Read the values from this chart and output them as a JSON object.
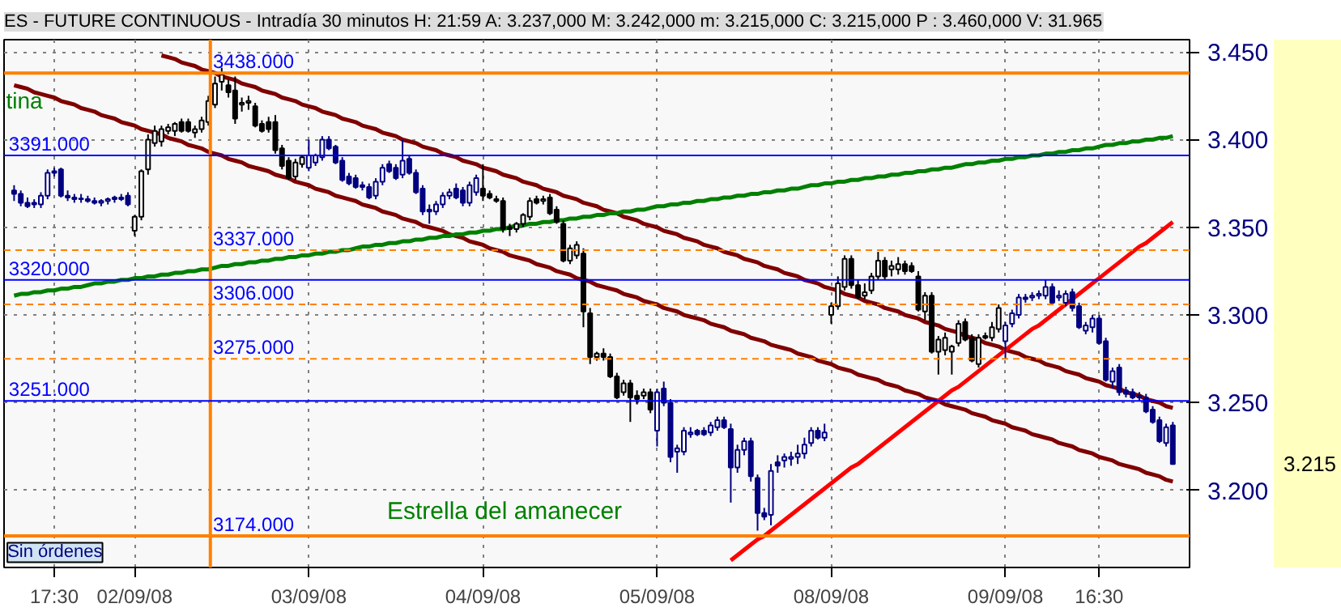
{
  "chart_data": {
    "type": "candlestick",
    "title": "ES - FUTURE CONTINUOUS - Intradía 30 minutos H: 21:59 A: 3.237,000 M: 3.242,000 m: 3.215,000 C: 3.215,000 P : 3.460,000 V: 31.965",
    "categories": [
      null,
      null,
      null,
      null,
      null,
      null,
      "17:30",
      null,
      null,
      null,
      null,
      null,
      null,
      null,
      null,
      null,
      null,
      null,
      "02/09/08",
      null,
      null,
      null,
      null,
      null,
      null,
      null,
      null,
      null,
      null,
      null,
      null,
      null,
      null,
      null,
      null,
      null,
      null,
      null,
      null,
      null,
      null,
      null,
      null,
      null,
      "03/09/08",
      null,
      null,
      null,
      null,
      null,
      null,
      null,
      null,
      null,
      null,
      null,
      null,
      null,
      null,
      null,
      null,
      null,
      null,
      null,
      null,
      null,
      null,
      null,
      null,
      null,
      "04/09/08",
      null,
      null,
      null,
      null,
      null,
      null,
      null,
      null,
      null,
      null,
      null,
      null,
      null,
      null,
      null,
      null,
      null,
      null,
      null,
      null,
      null,
      null,
      null,
      null,
      null,
      "05/09/08",
      null,
      null,
      null,
      null,
      null,
      null,
      null,
      null,
      null,
      null,
      null,
      null,
      null,
      null,
      null,
      null,
      null,
      null,
      null,
      null,
      null,
      null,
      null,
      null,
      null,
      "08/09/08",
      null,
      null,
      null,
      null,
      null,
      null,
      null,
      null,
      null,
      null,
      null,
      null,
      null,
      null,
      null,
      null,
      null,
      null,
      null,
      null,
      null,
      null,
      null,
      null,
      null,
      "09/09/08",
      null,
      null,
      null,
      null,
      null,
      null,
      null,
      null,
      null,
      null,
      null,
      null,
      null,
      "16:30",
      null,
      null,
      null,
      null,
      null,
      null,
      null,
      null,
      null,
      null,
      null
    ],
    "ohlc": [
      [
        3.371,
        3.374,
        3.365,
        3.369
      ],
      [
        3.369,
        3.371,
        3.362,
        3.364
      ],
      [
        3.364,
        3.367,
        3.361,
        3.362
      ],
      [
        3.363,
        3.366,
        3.361,
        3.364
      ],
      [
        3.363,
        3.37,
        3.361,
        3.368
      ],
      [
        3.368,
        3.383,
        3.366,
        3.381
      ],
      [
        3.381,
        3.384,
        3.379,
        3.382
      ],
      [
        3.383,
        3.384,
        3.367,
        3.368
      ],
      [
        3.368,
        3.371,
        3.365,
        3.367
      ],
      [
        3.367,
        3.369,
        3.364,
        3.366
      ],
      [
        3.366,
        3.369,
        3.364,
        3.366
      ],
      [
        3.366,
        3.368,
        3.364,
        3.365
      ],
      [
        3.365,
        3.367,
        3.363,
        3.364
      ],
      [
        3.364,
        3.366,
        3.362,
        3.365
      ],
      [
        3.365,
        3.367,
        3.363,
        3.366
      ],
      [
        3.366,
        3.368,
        3.364,
        3.367
      ],
      [
        3.367,
        3.369,
        3.365,
        3.366
      ],
      [
        3.368,
        3.37,
        3.362,
        3.363
      ],
      [
        3.348,
        3.357,
        3.345,
        3.356
      ],
      [
        3.356,
        3.383,
        3.354,
        3.382
      ],
      [
        3.383,
        3.403,
        3.38,
        3.4
      ],
      [
        3.398,
        3.408,
        3.396,
        3.405
      ],
      [
        3.399,
        3.408,
        3.396,
        3.406
      ],
      [
        3.405,
        3.409,
        3.403,
        3.407
      ],
      [
        3.405,
        3.41,
        3.402,
        3.409
      ],
      [
        3.41,
        3.412,
        3.404,
        3.405
      ],
      [
        3.41,
        3.412,
        3.404,
        3.405
      ],
      [
        3.404,
        3.408,
        3.401,
        3.406
      ],
      [
        3.406,
        3.413,
        3.404,
        3.411
      ],
      [
        3.41,
        3.425,
        3.408,
        3.422
      ],
      [
        3.42,
        3.436,
        3.418,
        3.432
      ],
      [
        3.433,
        3.441,
        3.428,
        3.437
      ],
      [
        3.431,
        3.434,
        3.424,
        3.427
      ],
      [
        3.428,
        3.436,
        3.409,
        3.412
      ],
      [
        3.42,
        3.424,
        3.416,
        3.421
      ],
      [
        3.421,
        3.425,
        3.417,
        3.422
      ],
      [
        3.419,
        3.421,
        3.407,
        3.408
      ],
      [
        3.409,
        3.411,
        3.404,
        3.405
      ],
      [
        3.41,
        3.413,
        3.404,
        3.406
      ],
      [
        3.41,
        3.414,
        3.392,
        3.394
      ],
      [
        3.395,
        3.397,
        3.383,
        3.385
      ],
      [
        3.388,
        3.39,
        3.377,
        3.378
      ],
      [
        3.379,
        3.389,
        3.377,
        3.387
      ],
      [
        3.386,
        3.391,
        3.384,
        3.39
      ],
      [
        3.384,
        3.4,
        3.382,
        3.391
      ],
      [
        3.387,
        3.392,
        3.385,
        3.391
      ],
      [
        3.39,
        3.402,
        3.388,
        3.4
      ],
      [
        3.4,
        3.402,
        3.394,
        3.395
      ],
      [
        3.396,
        3.397,
        3.386,
        3.387
      ],
      [
        3.388,
        3.39,
        3.376,
        3.377
      ],
      [
        3.379,
        3.381,
        3.374,
        3.375
      ],
      [
        3.378,
        3.38,
        3.372,
        3.373
      ],
      [
        3.374,
        3.376,
        3.371,
        3.373
      ],
      [
        3.373,
        3.375,
        3.366,
        3.367
      ],
      [
        3.368,
        3.378,
        3.366,
        3.376
      ],
      [
        3.376,
        3.386,
        3.374,
        3.384
      ],
      [
        3.386,
        3.388,
        3.381,
        3.382
      ],
      [
        3.384,
        3.386,
        3.377,
        3.378
      ],
      [
        3.38,
        3.4,
        3.378,
        3.388
      ],
      [
        3.389,
        3.391,
        3.38,
        3.381
      ],
      [
        3.381,
        3.383,
        3.369,
        3.37
      ],
      [
        3.372,
        3.374,
        3.357,
        3.359
      ],
      [
        3.36,
        3.363,
        3.352,
        3.359
      ],
      [
        3.359,
        3.365,
        3.357,
        3.363
      ],
      [
        3.363,
        3.37,
        3.361,
        3.368
      ],
      [
        3.368,
        3.372,
        3.366,
        3.37
      ],
      [
        3.372,
        3.375,
        3.366,
        3.367
      ],
      [
        3.371,
        3.373,
        3.362,
        3.364
      ],
      [
        3.364,
        3.376,
        3.362,
        3.374
      ],
      [
        3.37,
        3.38,
        3.368,
        3.378
      ],
      [
        3.372,
        3.386,
        3.365,
        3.368
      ],
      [
        3.369,
        3.371,
        3.366,
        3.367
      ],
      [
        3.366,
        3.368,
        3.364,
        3.365
      ],
      [
        3.365,
        3.367,
        3.347,
        3.349
      ],
      [
        3.35,
        3.352,
        3.345,
        3.349
      ],
      [
        3.349,
        3.353,
        3.347,
        3.352
      ],
      [
        3.352,
        3.358,
        3.35,
        3.357
      ],
      [
        3.356,
        3.367,
        3.354,
        3.365
      ],
      [
        3.366,
        3.368,
        3.363,
        3.364
      ],
      [
        3.365,
        3.368,
        3.363,
        3.366
      ],
      [
        3.367,
        3.369,
        3.357,
        3.358
      ],
      [
        3.36,
        3.362,
        3.352,
        3.353
      ],
      [
        3.352,
        3.354,
        3.33,
        3.331
      ],
      [
        3.331,
        3.34,
        3.329,
        3.338
      ],
      [
        3.334,
        3.342,
        3.332,
        3.34
      ],
      [
        3.335,
        3.338,
        3.293,
        3.302
      ],
      [
        3.301,
        3.304,
        3.272,
        3.276
      ],
      [
        3.276,
        3.279,
        3.274,
        3.278
      ],
      [
        3.278,
        3.281,
        3.274,
        3.276
      ],
      [
        3.276,
        3.278,
        3.264,
        3.265
      ],
      [
        3.265,
        3.267,
        3.252,
        3.253
      ],
      [
        3.256,
        3.263,
        3.254,
        3.261
      ],
      [
        3.261,
        3.263,
        3.239,
        3.253
      ],
      [
        3.254,
        3.257,
        3.249,
        3.252
      ],
      [
        3.254,
        3.258,
        3.252,
        3.256
      ],
      [
        3.256,
        3.258,
        3.244,
        3.246
      ],
      [
        3.234,
        3.258,
        3.225,
        3.256
      ],
      [
        3.258,
        3.262,
        3.248,
        3.25
      ],
      [
        3.25,
        3.252,
        3.216,
        3.219
      ],
      [
        3.222,
        3.226,
        3.21,
        3.224
      ],
      [
        3.222,
        3.236,
        3.22,
        3.234
      ],
      [
        3.232,
        3.236,
        3.23,
        3.233
      ],
      [
        3.234,
        3.235,
        3.231,
        3.232
      ],
      [
        3.234,
        3.236,
        3.231,
        3.232
      ],
      [
        3.233,
        3.239,
        3.231,
        3.237
      ],
      [
        3.236,
        3.242,
        3.234,
        3.24
      ],
      [
        3.24,
        3.242,
        3.235,
        3.236
      ],
      [
        3.235,
        3.238,
        3.193,
        3.213
      ],
      [
        3.213,
        3.226,
        3.21,
        3.223
      ],
      [
        3.223,
        3.23,
        3.22,
        3.228
      ],
      [
        3.228,
        3.23,
        3.205,
        3.208
      ],
      [
        3.207,
        3.209,
        3.177,
        3.187
      ],
      [
        3.187,
        3.19,
        3.183,
        3.185
      ],
      [
        3.186,
        3.215,
        3.18,
        3.211
      ],
      [
        3.216,
        3.22,
        3.21,
        3.214
      ],
      [
        3.217,
        3.221,
        3.213,
        3.219
      ],
      [
        3.218,
        3.222,
        3.214,
        3.219
      ],
      [
        3.219,
        3.226,
        3.215,
        3.221
      ],
      [
        3.221,
        3.23,
        3.218,
        3.226
      ],
      [
        3.227,
        3.236,
        3.225,
        3.234
      ],
      [
        3.234,
        3.236,
        3.229,
        3.23
      ],
      [
        3.23,
        3.238,
        3.228,
        3.233
      ],
      [
        3.3,
        3.307,
        3.295,
        3.305
      ],
      [
        3.305,
        3.322,
        3.303,
        3.318
      ],
      [
        3.316,
        3.334,
        3.314,
        3.332
      ],
      [
        3.332,
        3.334,
        3.315,
        3.317
      ],
      [
        3.317,
        3.32,
        3.309,
        3.31
      ],
      [
        3.311,
        3.318,
        3.309,
        3.313
      ],
      [
        3.314,
        3.324,
        3.312,
        3.322
      ],
      [
        3.322,
        3.336,
        3.32,
        3.331
      ],
      [
        3.331,
        3.333,
        3.32,
        3.322
      ],
      [
        3.326,
        3.331,
        3.322,
        3.328
      ],
      [
        3.326,
        3.333,
        3.323,
        3.329
      ],
      [
        3.329,
        3.331,
        3.323,
        3.325
      ],
      [
        3.328,
        3.33,
        3.324,
        3.325
      ],
      [
        3.322,
        3.325,
        3.302,
        3.303
      ],
      [
        3.302,
        3.313,
        3.297,
        3.311
      ],
      [
        3.311,
        3.313,
        3.278,
        3.279
      ],
      [
        3.279,
        3.288,
        3.266,
        3.286
      ],
      [
        3.28,
        3.29,
        3.277,
        3.287
      ],
      [
        3.279,
        3.283,
        3.266,
        3.282
      ],
      [
        3.284,
        3.297,
        3.282,
        3.295
      ],
      [
        3.296,
        3.298,
        3.285,
        3.286
      ],
      [
        3.287,
        3.289,
        3.273,
        3.274
      ],
      [
        3.272,
        3.289,
        3.27,
        3.287
      ],
      [
        3.288,
        3.29,
        3.286,
        3.287
      ],
      [
        3.287,
        3.296,
        3.285,
        3.293
      ],
      [
        3.292,
        3.306,
        3.29,
        3.304
      ],
      [
        3.285,
        3.296,
        3.275,
        3.294
      ],
      [
        3.295,
        3.303,
        3.293,
        3.301
      ],
      [
        3.3,
        3.312,
        3.298,
        3.31
      ],
      [
        3.309,
        3.312,
        3.307,
        3.31
      ],
      [
        3.31,
        3.313,
        3.308,
        3.311
      ],
      [
        3.311,
        3.314,
        3.309,
        3.312
      ],
      [
        3.311,
        3.32,
        3.309,
        3.316
      ],
      [
        3.316,
        3.318,
        3.306,
        3.307
      ],
      [
        3.31,
        3.314,
        3.308,
        3.311
      ],
      [
        3.307,
        3.314,
        3.305,
        3.312
      ],
      [
        3.313,
        3.315,
        3.302,
        3.304
      ],
      [
        3.305,
        3.307,
        3.292,
        3.293
      ],
      [
        3.291,
        3.296,
        3.289,
        3.294
      ],
      [
        3.293,
        3.3,
        3.29,
        3.298
      ],
      [
        3.298,
        3.3,
        3.283,
        3.284
      ],
      [
        3.285,
        3.287,
        3.262,
        3.263
      ],
      [
        3.262,
        3.27,
        3.258,
        3.268
      ],
      [
        3.27,
        3.272,
        3.254,
        3.256
      ],
      [
        3.257,
        3.259,
        3.253,
        3.255
      ],
      [
        3.256,
        3.258,
        3.252,
        3.253
      ],
      [
        3.254,
        3.256,
        3.251,
        3.253
      ],
      [
        3.253,
        3.255,
        3.244,
        3.245
      ],
      [
        3.246,
        3.248,
        3.238,
        3.239
      ],
      [
        3.24,
        3.242,
        3.227,
        3.228
      ],
      [
        3.227,
        3.238,
        3.225,
        3.236
      ],
      [
        3.237,
        3.239,
        3.215,
        3.215
      ]
    ],
    "colors": [
      "#000080",
      "#000080",
      "#000080",
      "#000080",
      "#000080",
      "#000080",
      "#000080",
      "#000080",
      "#000080",
      "#000080",
      "#000080",
      "#000080",
      "#000080",
      "#000080",
      "#000080",
      "#000080",
      "#000080",
      "#000080",
      "#000000",
      "#000000",
      "#000000",
      "#000000",
      "#000000",
      "#000000",
      "#000000",
      "#000000",
      "#000000",
      "#000000",
      "#000000",
      "#000000",
      "#000000",
      "#000000",
      "#000000",
      "#000000",
      "#000000",
      "#000000",
      "#000000",
      "#000000",
      "#000000",
      "#000000",
      "#000000",
      "#000000",
      "#000000",
      "#000000",
      "#000080",
      "#000080",
      "#000080",
      "#000080",
      "#000080",
      "#000080",
      "#000080",
      "#000080",
      "#000080",
      "#000080",
      "#000080",
      "#000080",
      "#000080",
      "#000080",
      "#000080",
      "#000080",
      "#000080",
      "#000080",
      "#000080",
      "#000080",
      "#000080",
      "#000080",
      "#000080",
      "#000080",
      "#000080",
      "#000080",
      "#000000",
      "#000000",
      "#000000",
      "#000000",
      "#000000",
      "#000000",
      "#000000",
      "#000000",
      "#000000",
      "#000000",
      "#000000",
      "#000000",
      "#000000",
      "#000000",
      "#000000",
      "#000000",
      "#000000",
      "#000000",
      "#000000",
      "#000000",
      "#000000",
      "#000000",
      "#000000",
      "#000000",
      "#000000",
      "#000000",
      "#000080",
      "#000080",
      "#000080",
      "#000080",
      "#000080",
      "#000080",
      "#000080",
      "#000080",
      "#000080",
      "#000080",
      "#000080",
      "#000080",
      "#000080",
      "#000080",
      "#000080",
      "#000080",
      "#000080",
      "#000080",
      "#000080",
      "#000080",
      "#000080",
      "#000080",
      "#000080",
      "#000080",
      "#000080",
      "#000080",
      "#000000",
      "#000000",
      "#000000",
      "#000000",
      "#000000",
      "#000000",
      "#000000",
      "#000000",
      "#000000",
      "#000000",
      "#000000",
      "#000000",
      "#000000",
      "#000000",
      "#000000",
      "#000000",
      "#000000",
      "#000000",
      "#000000",
      "#000000",
      "#000000",
      "#000000",
      "#000000",
      "#000000",
      "#000000",
      "#000000",
      "#000080",
      "#000080",
      "#000080",
      "#000080",
      "#000080",
      "#000080",
      "#000080",
      "#000080",
      "#000080",
      "#000080",
      "#000080",
      "#000080",
      "#000080",
      "#000080",
      "#000080",
      "#000080",
      "#000080",
      "#000080",
      "#000080",
      "#000080",
      "#000080",
      "#000080",
      "#000080",
      "#000080",
      "#000080",
      "#000080"
    ],
    "series": [
      {
        "type": "line",
        "color": "#800000",
        "values": [
          null,
          null,
          null,
          null,
          null,
          null,
          null,
          null,
          null,
          null,
          null,
          null,
          null,
          null,
          null,
          null,
          null,
          null,
          null,
          null,
          null,
          null,
          3.448,
          3.447,
          3.446,
          3.444,
          3.443,
          3.442,
          3.44,
          3.439,
          3.438,
          3.436,
          3.435,
          3.434,
          3.432,
          3.431,
          3.43,
          3.428,
          3.427,
          3.426,
          3.424,
          3.423,
          3.422,
          3.42,
          3.419,
          3.418,
          3.416,
          3.415,
          3.414,
          3.412,
          3.411,
          3.41,
          3.408,
          3.407,
          3.406,
          3.404,
          3.403,
          3.402,
          3.4,
          3.399,
          3.398,
          3.396,
          3.395,
          3.394,
          3.392,
          3.391,
          3.39,
          3.388,
          3.387,
          3.386,
          3.384,
          3.383,
          3.382,
          3.38,
          3.379,
          3.378,
          3.376,
          3.375,
          3.374,
          3.372,
          3.371,
          3.37,
          3.368,
          3.367,
          3.366,
          3.364,
          3.363,
          3.362,
          3.36,
          3.359,
          3.358,
          3.356,
          3.355,
          3.354,
          3.352,
          3.351,
          3.35,
          3.348,
          3.347,
          3.346,
          3.344,
          3.343,
          3.342,
          3.34,
          3.339,
          3.338,
          3.336,
          3.335,
          3.334,
          3.332,
          3.331,
          3.33,
          3.328,
          3.327,
          3.326,
          3.324,
          3.323,
          3.322,
          3.32,
          3.319,
          3.318,
          3.316,
          3.315,
          3.314,
          3.312,
          3.311,
          3.31,
          3.308,
          3.307,
          3.306,
          3.304,
          3.303,
          3.302,
          3.3,
          3.299,
          3.298,
          3.296,
          3.295,
          3.294,
          3.292,
          3.291,
          3.29,
          3.288,
          3.287,
          3.286,
          3.284,
          3.283,
          3.282,
          3.28,
          3.279,
          3.278,
          3.276,
          3.275,
          3.274,
          3.272,
          3.271,
          3.27,
          3.268,
          3.267,
          3.266,
          3.264,
          3.263,
          3.262,
          3.26,
          3.259,
          3.258,
          3.256,
          3.255,
          3.254,
          3.252,
          3.251,
          3.25,
          3.248,
          3.247
        ]
      },
      {
        "type": "line",
        "color": "#800000",
        "values": [
          3.431,
          3.43,
          3.429,
          3.427,
          3.426,
          3.425,
          3.424,
          3.422,
          3.421,
          3.42,
          3.418,
          3.417,
          3.416,
          3.414,
          3.413,
          3.412,
          3.41,
          3.409,
          3.408,
          3.406,
          3.405,
          3.404,
          3.403,
          3.401,
          3.4,
          3.399,
          3.397,
          3.396,
          3.395,
          3.393,
          3.392,
          3.391,
          3.389,
          3.388,
          3.387,
          3.385,
          3.384,
          3.383,
          3.382,
          3.38,
          3.379,
          3.378,
          3.376,
          3.375,
          3.374,
          3.372,
          3.371,
          3.37,
          3.368,
          3.367,
          3.366,
          3.365,
          3.363,
          3.362,
          3.361,
          3.359,
          3.358,
          3.357,
          3.355,
          3.354,
          3.353,
          3.351,
          3.35,
          3.349,
          3.348,
          3.346,
          3.345,
          3.344,
          3.342,
          3.341,
          3.34,
          3.338,
          3.337,
          3.336,
          3.334,
          3.333,
          3.332,
          3.331,
          3.329,
          3.328,
          3.327,
          3.325,
          3.324,
          3.323,
          3.321,
          3.32,
          3.319,
          3.317,
          3.316,
          3.315,
          3.314,
          3.312,
          3.311,
          3.31,
          3.308,
          3.307,
          3.306,
          3.304,
          3.303,
          3.302,
          3.3,
          3.299,
          3.298,
          3.297,
          3.295,
          3.294,
          3.293,
          3.291,
          3.29,
          3.289,
          3.287,
          3.286,
          3.285,
          3.283,
          3.282,
          3.281,
          3.28,
          3.278,
          3.277,
          3.276,
          3.274,
          3.273,
          3.272,
          3.27,
          3.269,
          3.268,
          3.266,
          3.265,
          3.264,
          3.263,
          3.261,
          3.26,
          3.259,
          3.257,
          3.256,
          3.255,
          3.253,
          3.252,
          3.251,
          3.249,
          3.248,
          3.247,
          3.246,
          3.244,
          3.243,
          3.242,
          3.24,
          3.239,
          3.238,
          3.236,
          3.235,
          3.234,
          3.232,
          3.231,
          3.23,
          3.229,
          3.227,
          3.226,
          3.225,
          3.223,
          3.222,
          3.221,
          3.219,
          3.218,
          3.217,
          3.215,
          3.214,
          3.213,
          3.212,
          3.21,
          3.209,
          3.208,
          3.206,
          3.205
        ]
      },
      {
        "type": "line",
        "color": "#008000",
        "values": [
          3.311,
          3.312,
          3.312,
          3.313,
          3.313,
          3.314,
          3.314,
          3.315,
          3.315,
          3.316,
          3.316,
          3.317,
          3.318,
          3.318,
          3.319,
          3.319,
          3.32,
          3.32,
          3.321,
          3.321,
          3.322,
          3.322,
          3.323,
          3.323,
          3.324,
          3.324,
          3.325,
          3.325,
          3.326,
          3.326,
          3.327,
          3.328,
          3.328,
          3.329,
          3.329,
          3.33,
          3.33,
          3.331,
          3.331,
          3.332,
          3.332,
          3.333,
          3.333,
          3.334,
          3.334,
          3.335,
          3.335,
          3.336,
          3.336,
          3.337,
          3.337,
          3.338,
          3.339,
          3.339,
          3.34,
          3.34,
          3.341,
          3.341,
          3.342,
          3.342,
          3.343,
          3.343,
          3.344,
          3.344,
          3.345,
          3.345,
          3.346,
          3.346,
          3.347,
          3.347,
          3.348,
          3.348,
          3.349,
          3.349,
          3.35,
          3.351,
          3.351,
          3.352,
          3.352,
          3.353,
          3.353,
          3.354,
          3.354,
          3.355,
          3.355,
          3.356,
          3.356,
          3.357,
          3.357,
          3.358,
          3.358,
          3.359,
          3.359,
          3.36,
          3.36,
          3.361,
          3.362,
          3.362,
          3.363,
          3.363,
          3.364,
          3.364,
          3.365,
          3.365,
          3.366,
          3.366,
          3.367,
          3.367,
          3.368,
          3.368,
          3.369,
          3.369,
          3.37,
          3.37,
          3.371,
          3.371,
          3.372,
          3.372,
          3.373,
          3.374,
          3.374,
          3.375,
          3.375,
          3.376,
          3.376,
          3.377,
          3.377,
          3.378,
          3.378,
          3.379,
          3.379,
          3.38,
          3.38,
          3.381,
          3.381,
          3.382,
          3.382,
          3.383,
          3.383,
          3.384,
          3.384,
          3.385,
          3.386,
          3.386,
          3.387,
          3.387,
          3.388,
          3.388,
          3.389,
          3.389,
          3.39,
          3.39,
          3.391,
          3.391,
          3.392,
          3.392,
          3.393,
          3.393,
          3.394,
          3.394,
          3.395,
          3.395,
          3.396,
          3.397,
          3.397,
          3.398,
          3.398,
          3.399,
          3.399,
          3.4,
          3.4,
          3.401,
          3.401,
          3.402
        ]
      },
      {
        "type": "line",
        "color": "#ff0000",
        "values": [
          null,
          null,
          null,
          null,
          null,
          null,
          null,
          null,
          null,
          null,
          null,
          null,
          null,
          null,
          null,
          null,
          null,
          null,
          null,
          null,
          null,
          null,
          null,
          null,
          null,
          null,
          null,
          null,
          null,
          null,
          null,
          null,
          null,
          null,
          null,
          null,
          null,
          null,
          null,
          null,
          null,
          null,
          null,
          null,
          null,
          null,
          null,
          null,
          null,
          null,
          null,
          null,
          null,
          null,
          null,
          null,
          null,
          null,
          null,
          null,
          null,
          null,
          null,
          null,
          null,
          null,
          null,
          null,
          null,
          null,
          null,
          null,
          null,
          null,
          null,
          null,
          null,
          null,
          null,
          null,
          null,
          null,
          null,
          null,
          null,
          null,
          null,
          null,
          null,
          null,
          null,
          null,
          null,
          null,
          null,
          null,
          null,
          null,
          null,
          null,
          null,
          null,
          null,
          null,
          null,
          null,
          null,
          3.16,
          3.163,
          3.166,
          3.169,
          3.172,
          3.174,
          3.177,
          3.18,
          3.183,
          3.186,
          3.189,
          3.192,
          3.195,
          3.198,
          3.201,
          3.204,
          3.207,
          3.21,
          3.213,
          3.215,
          3.218,
          3.221,
          3.224,
          3.227,
          3.23,
          3.233,
          3.236,
          3.239,
          3.242,
          3.245,
          3.248,
          3.251,
          3.254,
          3.257,
          3.259,
          3.262,
          3.265,
          3.268,
          3.271,
          3.274,
          3.277,
          3.28,
          3.283,
          3.286,
          3.289,
          3.292,
          3.294,
          3.297,
          3.3,
          3.303,
          3.306,
          3.309,
          3.312,
          3.315,
          3.318,
          3.321,
          3.324,
          3.327,
          3.33,
          3.333,
          3.336,
          3.339,
          3.341,
          3.344,
          3.347,
          3.35,
          3.353
        ]
      }
    ],
    "ref_lines": [
      {
        "axis": "y",
        "value": 3.438,
        "label": "3438.000",
        "color": "#ff8000"
      },
      {
        "axis": "y",
        "value": 3.391,
        "label": "3391.000",
        "color": "#0000ff"
      },
      {
        "axis": "y",
        "value": 3.337,
        "label": "3337.000",
        "color": "#ff8000",
        "line_style": "dashed"
      },
      {
        "axis": "y",
        "value": 3.32,
        "label": "3320.000",
        "color": "#0000ff"
      },
      {
        "axis": "y",
        "value": 3.306,
        "label": "3306.000",
        "color": "#ff8000",
        "line_style": "dashed"
      },
      {
        "axis": "y",
        "value": 3.275,
        "label": "3275.000",
        "color": "#ff8000",
        "line_style": "dashed"
      },
      {
        "axis": "y",
        "value": 3.251,
        "label": "3251.000",
        "color": "#0000ff"
      },
      {
        "axis": "y",
        "value": 3.174,
        "label": "3174.000",
        "color": "#ff8000"
      }
    ],
    "annotations": [
      "tina",
      "Estrella del amanecer",
      "Sin órdenes",
      "3.215"
    ],
    "ylim": [
      3.156,
      3.457
    ],
    "yticks": [
      {
        "value": 3.2,
        "label": "3.200"
      },
      {
        "value": 3.25,
        "label": "3.250"
      },
      {
        "value": 3.3,
        "label": "3.300"
      },
      {
        "value": 3.35,
        "label": "3.350"
      },
      {
        "value": 3.4,
        "label": "3.400"
      },
      {
        "value": 3.45,
        "label": "3.450"
      }
    ],
    "grid": true
  }
}
